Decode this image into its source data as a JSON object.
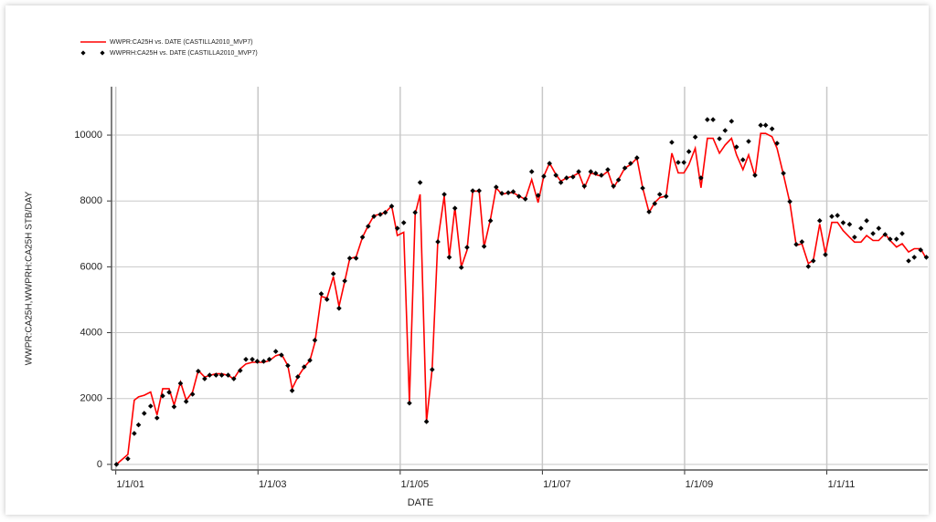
{
  "chart_data": {
    "type": "line",
    "x_label": "DATE",
    "y_label": "WWPR:CA25H,WWPRH:CA25H    STB/DAY",
    "xlim": [
      2000.94,
      2012.42
    ],
    "ylim": [
      -170,
      11470
    ],
    "xticks": [
      {
        "value": 2001,
        "label": "1/1/01"
      },
      {
        "value": 2003,
        "label": "1/1/03"
      },
      {
        "value": 2005,
        "label": "1/1/05"
      },
      {
        "value": 2007,
        "label": "1/1/07"
      },
      {
        "value": 2009,
        "label": "1/1/09"
      },
      {
        "value": 2011,
        "label": "1/1/11"
      }
    ],
    "yticks": [
      0,
      2000,
      4000,
      6000,
      8000,
      10000
    ],
    "grid": true,
    "legend": "top-left",
    "x": [
      2001.01,
      2001.17,
      2001.26,
      2001.32,
      2001.4,
      2001.49,
      2001.58,
      2001.66,
      2001.75,
      2001.82,
      2001.91,
      2001.99,
      2002.08,
      2002.16,
      2002.25,
      2002.32,
      2002.41,
      2002.49,
      2002.58,
      2002.66,
      2002.75,
      2002.83,
      2002.92,
      2002.99,
      2003.08,
      2003.16,
      2003.25,
      2003.33,
      2003.42,
      2003.48,
      2003.56,
      2003.65,
      2003.73,
      2003.8,
      2003.89,
      2003.97,
      2004.06,
      2004.14,
      2004.22,
      2004.29,
      2004.38,
      2004.47,
      2004.55,
      2004.63,
      2004.72,
      2004.79,
      2004.88,
      2004.96,
      2005.05,
      2005.13,
      2005.21,
      2005.28,
      2005.37,
      2005.45,
      2005.53,
      2005.62,
      2005.69,
      2005.77,
      2005.86,
      2005.94,
      2006.02,
      2006.11,
      2006.18,
      2006.27,
      2006.35,
      2006.43,
      2006.52,
      2006.59,
      2006.67,
      2006.76,
      2006.85,
      2006.94,
      2007.02,
      2007.1,
      2007.19,
      2007.26,
      2007.34,
      2007.43,
      2007.51,
      2007.59,
      2007.68,
      2007.75,
      2007.83,
      2007.92,
      2008.0,
      2008.07,
      2008.16,
      2008.24,
      2008.33,
      2008.41,
      2008.5,
      2008.58,
      2008.65,
      2008.74,
      2008.82,
      2008.91,
      2008.99,
      2009.06,
      2009.15,
      2009.23,
      2009.32,
      2009.4,
      2009.49,
      2009.57,
      2009.66,
      2009.73,
      2009.82,
      2009.9,
      2009.99,
      2010.07,
      2010.14,
      2010.23,
      2010.3,
      2010.39,
      2010.48,
      2010.57,
      2010.65,
      2010.74,
      2010.81,
      2010.9,
      2010.98,
      2011.07,
      2011.15,
      2011.23,
      2011.32,
      2011.39,
      2011.48,
      2011.56,
      2011.65,
      2011.73,
      2011.82,
      2011.89,
      2011.98,
      2012.06,
      2012.15,
      2012.23,
      2012.32,
      2012.4
    ],
    "series": [
      {
        "name": "WWPR:CA25H vs. DATE (CASTILLA2010_MVP7)",
        "color": "#ff0000",
        "mark": "line",
        "values": [
          0,
          300,
          1950,
          2050,
          2100,
          2200,
          1500,
          2300,
          2300,
          1800,
          2500,
          1950,
          2200,
          2850,
          2650,
          2700,
          2750,
          2750,
          2700,
          2600,
          2900,
          3050,
          3100,
          3100,
          3100,
          3150,
          3300,
          3350,
          3000,
          2300,
          2650,
          2950,
          3150,
          3700,
          5100,
          5050,
          5700,
          4800,
          5550,
          6250,
          6300,
          6900,
          7250,
          7550,
          7600,
          7650,
          7850,
          6950,
          7050,
          1900,
          7600,
          8200,
          1300,
          2900,
          6800,
          8150,
          6300,
          7800,
          6000,
          6500,
          8300,
          8300,
          6600,
          7450,
          8400,
          8200,
          8250,
          8250,
          8150,
          8050,
          8650,
          7950,
          8750,
          9150,
          8800,
          8600,
          8700,
          8750,
          8850,
          8400,
          8850,
          8800,
          8750,
          8900,
          8400,
          8650,
          9000,
          9100,
          9300,
          8400,
          7650,
          7950,
          8100,
          8150,
          9450,
          8850,
          8850,
          9100,
          9600,
          8400,
          9900,
          9900,
          9450,
          9700,
          9900,
          9400,
          8950,
          9400,
          8750,
          10050,
          10050,
          9950,
          9600,
          8800,
          7950,
          6650,
          6700,
          6100,
          6200,
          7300,
          6400,
          7350,
          7350,
          7100,
          6900,
          6750,
          6750,
          6950,
          6800,
          6800,
          7000,
          6800,
          6600,
          6700,
          6450,
          6550,
          6550,
          6250
        ]
      },
      {
        "name": "WWPRH:CA25H vs. DATE (CASTILLA2010_MVP7)",
        "color": "#000000",
        "mark": "dot",
        "values": [
          0,
          170,
          940,
          1200,
          1550,
          1770,
          1410,
          2080,
          2190,
          1750,
          2460,
          1910,
          2130,
          2830,
          2600,
          2710,
          2710,
          2710,
          2710,
          2600,
          2850,
          3190,
          3190,
          3130,
          3130,
          3190,
          3430,
          3320,
          3000,
          2240,
          2660,
          2960,
          3160,
          3770,
          5180,
          5010,
          5790,
          4740,
          5570,
          6260,
          6260,
          6900,
          7230,
          7530,
          7590,
          7650,
          7840,
          7170,
          7340,
          1860,
          7650,
          8560,
          1300,
          2880,
          6760,
          8200,
          6290,
          7780,
          5980,
          6590,
          8310,
          8310,
          6620,
          7400,
          8420,
          8230,
          8250,
          8280,
          8140,
          8060,
          8890,
          8170,
          8750,
          9140,
          8780,
          8560,
          8700,
          8730,
          8890,
          8450,
          8890,
          8840,
          8780,
          8950,
          8450,
          8640,
          9000,
          9140,
          9310,
          8390,
          7670,
          7920,
          8200,
          8140,
          9780,
          9170,
          9170,
          9500,
          9940,
          8700,
          10470,
          10470,
          9890,
          10140,
          10420,
          9640,
          9250,
          9810,
          8780,
          10300,
          10300,
          10190,
          9750,
          8840,
          7980,
          6680,
          6760,
          6010,
          6180,
          7400,
          6370,
          7530,
          7560,
          7340,
          7290,
          6900,
          7170,
          7400,
          7010,
          7170,
          6980,
          6840,
          6840,
          7010,
          6180,
          6290,
          6510,
          6290
        ]
      }
    ]
  }
}
